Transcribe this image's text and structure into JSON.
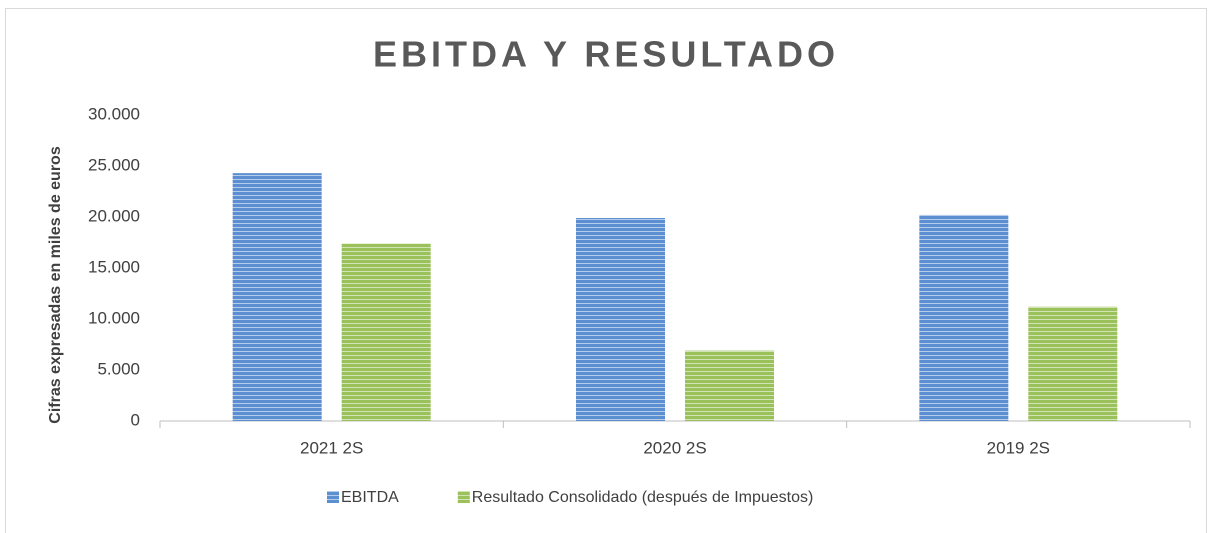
{
  "chart_data": {
    "type": "bar",
    "title": "EBITDA Y RESULTADO",
    "y_label": "Cifras expresadas en miles de euros",
    "categories": [
      "2021 2S",
      "2020 2S",
      "2019 2S"
    ],
    "series": [
      {
        "name": "EBITDA",
        "color": "#5b8fd1",
        "values": [
          24300,
          19900,
          20200
        ]
      },
      {
        "name": "Resultado Consolidado (después de Impuestos)",
        "color": "#9bc25a",
        "values": [
          17400,
          6900,
          11200
        ]
      }
    ],
    "ylim": [
      0,
      30000
    ],
    "yticks": [
      0,
      {
        "value": 5000,
        "label": "5.000"
      },
      {
        "value": 10000,
        "label": "10.000"
      },
      {
        "value": 15000,
        "label": "15.000"
      },
      {
        "value": 20000,
        "label": "20.000"
      },
      {
        "value": 25000,
        "label": "25.000"
      },
      {
        "value": 30000,
        "label": "30.000"
      }
    ],
    "grid": false,
    "legend": "bottom"
  }
}
